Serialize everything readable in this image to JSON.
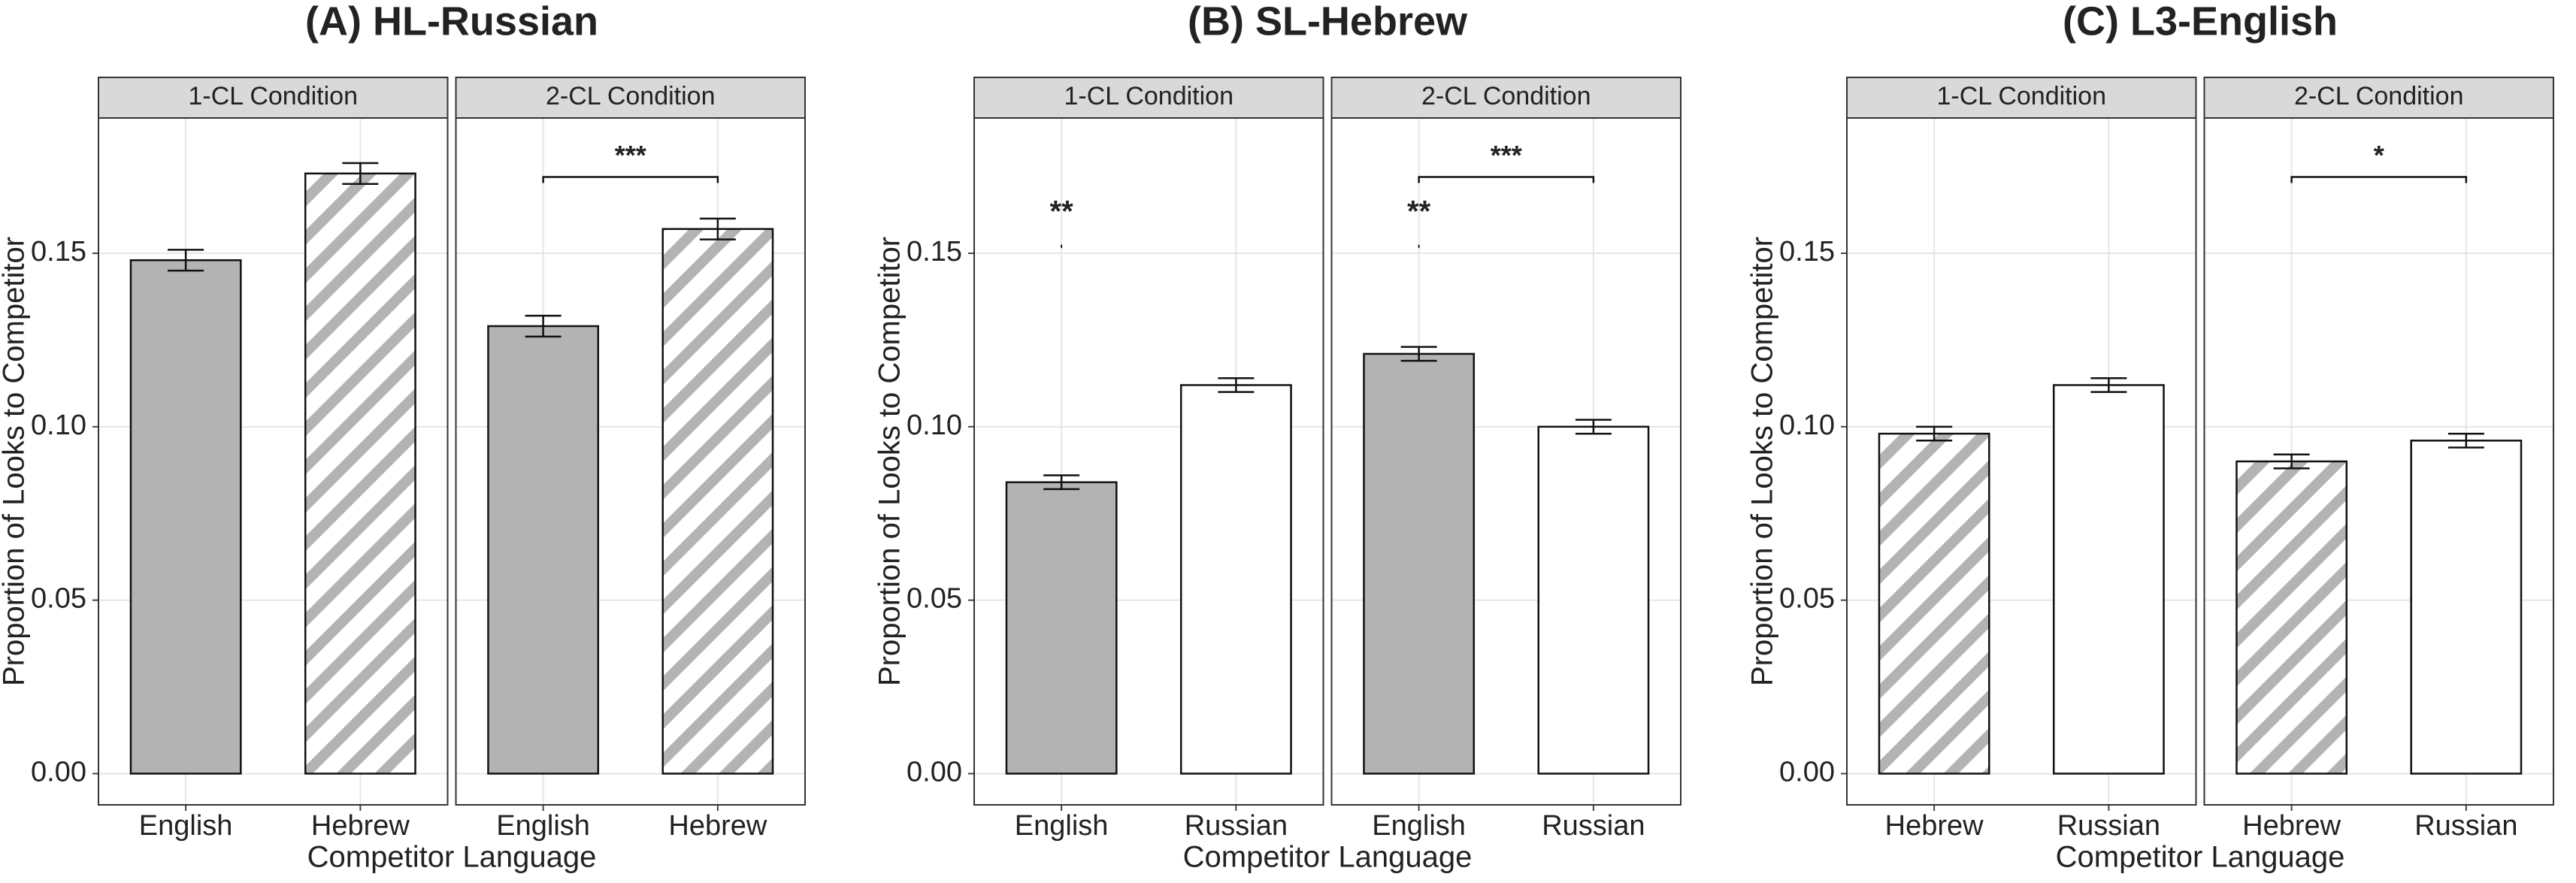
{
  "chart_data": [
    {
      "type": "bar",
      "title": "(A) HL-Russian",
      "ylabel": "Proportion of Looks to Competitor",
      "xlabel": "Competitor Language",
      "ylim": [
        -0.009,
        0.189
      ],
      "yticks": [
        {
          "value": 0,
          "label": "0.00"
        },
        {
          "value": 0.05,
          "label": "0.05"
        },
        {
          "value": 0.1,
          "label": "0.10"
        },
        {
          "value": 0.15,
          "label": "0.15"
        }
      ],
      "grid": true,
      "facets": [
        {
          "strip": "1-CL Condition",
          "categories": [
            "English",
            "Hebrew"
          ],
          "values": [
            0.148,
            0.173
          ],
          "errors": [
            0.003,
            0.003
          ],
          "fills": [
            "#b3b3b3",
            "hatch"
          ],
          "annotations": [],
          "brackets": []
        },
        {
          "strip": "2-CL Condition",
          "categories": [
            "English",
            "Hebrew"
          ],
          "values": [
            0.129,
            0.157
          ],
          "errors": [
            0.003,
            0.003
          ],
          "fills": [
            "#b3b3b3",
            "hatch"
          ],
          "annotations": [],
          "brackets": [
            {
              "text": "***",
              "y": 0.172
            }
          ]
        }
      ]
    },
    {
      "type": "bar",
      "title": "(B) SL-Hebrew",
      "ylabel": "Proportion of Looks to Competitor",
      "xlabel": "Competitor Language",
      "ylim": [
        -0.009,
        0.189
      ],
      "yticks": [
        {
          "value": 0,
          "label": "0.00"
        },
        {
          "value": 0.05,
          "label": "0.05"
        },
        {
          "value": 0.1,
          "label": "0.10"
        },
        {
          "value": 0.15,
          "label": "0.15"
        }
      ],
      "grid": true,
      "facets": [
        {
          "strip": "1-CL Condition",
          "categories": [
            "English",
            "Russian"
          ],
          "values": [
            0.084,
            0.112
          ],
          "errors": [
            0.002,
            0.002
          ],
          "fills": [
            "#b3b3b3",
            "#ffffff"
          ],
          "annotations": [
            {
              "text": "**",
              "category": 0,
              "y": 0.152
            }
          ],
          "brackets": []
        },
        {
          "strip": "2-CL Condition",
          "categories": [
            "English",
            "Russian"
          ],
          "values": [
            0.121,
            0.1
          ],
          "errors": [
            0.002,
            0.002
          ],
          "fills": [
            "#b3b3b3",
            "#ffffff"
          ],
          "annotations": [
            {
              "text": "**",
              "category": 0,
              "y": 0.152
            }
          ],
          "brackets": [
            {
              "text": "***",
              "y": 0.172
            }
          ]
        }
      ]
    },
    {
      "type": "bar",
      "title": "(C) L3-English",
      "ylabel": "Proportion of Looks to Competitor",
      "xlabel": "Competitor Language",
      "ylim": [
        -0.009,
        0.189
      ],
      "yticks": [
        {
          "value": 0,
          "label": "0.00"
        },
        {
          "value": 0.05,
          "label": "0.05"
        },
        {
          "value": 0.1,
          "label": "0.10"
        },
        {
          "value": 0.15,
          "label": "0.15"
        }
      ],
      "grid": true,
      "facets": [
        {
          "strip": "1-CL Condition",
          "categories": [
            "Hebrew",
            "Russian"
          ],
          "values": [
            0.098,
            0.112
          ],
          "errors": [
            0.002,
            0.002
          ],
          "fills": [
            "hatch",
            "#ffffff"
          ],
          "annotations": [],
          "brackets": []
        },
        {
          "strip": "2-CL Condition",
          "categories": [
            "Hebrew",
            "Russian"
          ],
          "values": [
            0.09,
            0.096
          ],
          "errors": [
            0.002,
            0.002
          ],
          "fills": [
            "hatch",
            "#ffffff"
          ],
          "annotations": [],
          "brackets": [
            {
              "text": "*",
              "y": 0.172
            }
          ]
        }
      ]
    }
  ]
}
